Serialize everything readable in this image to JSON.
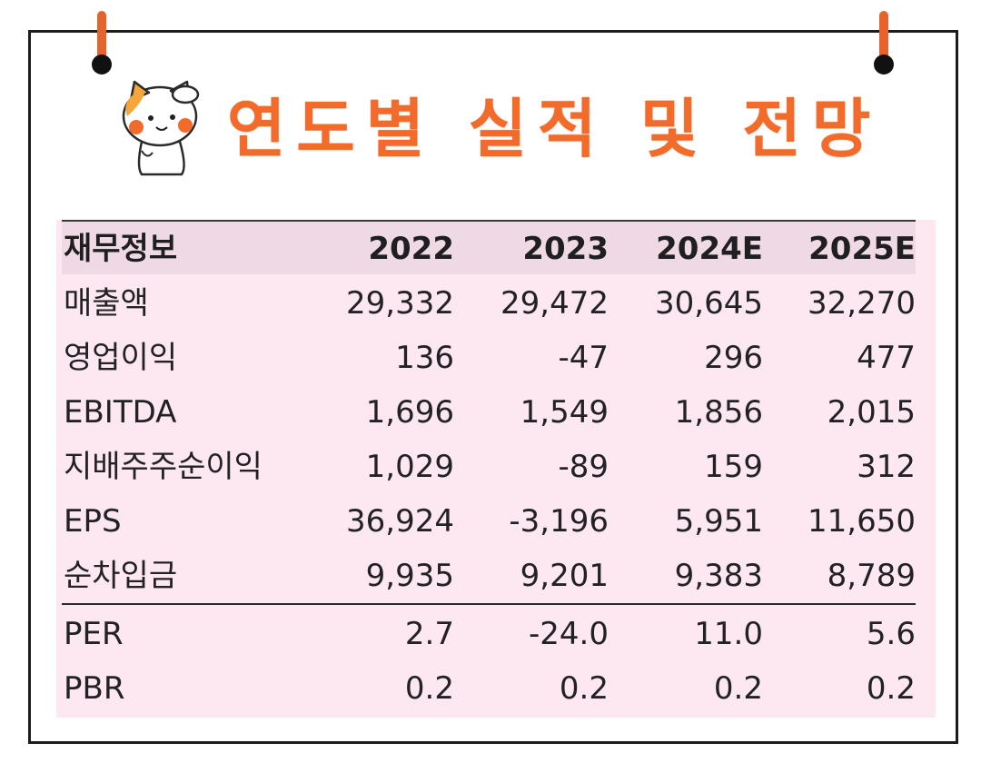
{
  "title": "연도별 실적 및 전망",
  "table": {
    "header": [
      "재무정보",
      "2022",
      "2023",
      "2024E",
      "2025E"
    ],
    "rows": [
      [
        "매출액",
        "29,332",
        "29,472",
        "30,645",
        "32,270"
      ],
      [
        "영업이익",
        "136",
        "-47",
        "296",
        "477"
      ],
      [
        "EBITDA",
        "1,696",
        "1,549",
        "1,856",
        "2,015"
      ],
      [
        "지배주주순이익",
        "1,029",
        "-89",
        "159",
        "312"
      ],
      [
        "EPS",
        "36,924",
        "-3,196",
        "5,951",
        "11,650"
      ],
      [
        "순차입금",
        "9,935",
        "9,201",
        "9,383",
        "8,789"
      ],
      [
        "PER",
        "2.7",
        "-24.0",
        "11.0",
        "5.6"
      ],
      [
        "PBR",
        "0.2",
        "0.2",
        "0.2",
        "0.2"
      ]
    ]
  },
  "colors": {
    "title": "#f26b2a",
    "table_bg": "#fde8f2",
    "header_bg": "#efd9e4",
    "pin": "#e8632b"
  },
  "icons": {
    "mascot": "cat-saluting-icon",
    "pin": "hanging-pin-icon"
  }
}
